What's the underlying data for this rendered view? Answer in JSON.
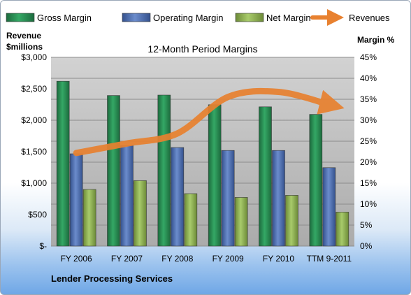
{
  "chart_data": {
    "type": "bar",
    "title": "12-Month Period Margins",
    "company": "Lender Processing Services",
    "left_axis_title_line1": "Revenue",
    "left_axis_title_line2": "$millions",
    "right_axis_title": "Margin %",
    "categories": [
      "FY 2006",
      "FY 2007",
      "FY 2008",
      "FY 2009",
      "FY 2010",
      "TTM 9-2011"
    ],
    "left_ylim": [
      0,
      3000
    ],
    "left_ticks": [
      "$-",
      "$500",
      "$1,000",
      "$1,500",
      "$2,000",
      "$2,500",
      "$3,000"
    ],
    "right_ylim": [
      0,
      45
    ],
    "right_ticks": [
      "0%",
      "5%",
      "10%",
      "15%",
      "20%",
      "25%",
      "30%",
      "35%",
      "40%",
      "45%"
    ],
    "grid": true,
    "legend_position": "top",
    "series": [
      {
        "name": "Gross Margin",
        "axis": "right",
        "color": "#2e8b57",
        "values": [
          39.3,
          35.9,
          36.0,
          33.7,
          33.2,
          31.4
        ]
      },
      {
        "name": "Operating Margin",
        "axis": "right",
        "color": "#4f71b4",
        "values": [
          22.0,
          24.0,
          23.5,
          22.8,
          22.8,
          18.7
        ]
      },
      {
        "name": "Net Margin",
        "axis": "right",
        "color": "#8db04f",
        "values": [
          13.5,
          15.6,
          12.5,
          11.6,
          12.1,
          8.1
        ]
      },
      {
        "name": "Revenues",
        "axis": "left",
        "type": "line",
        "color": "#e8812f",
        "values": [
          1480,
          1630,
          1790,
          2370,
          2450,
          2250
        ]
      }
    ]
  }
}
